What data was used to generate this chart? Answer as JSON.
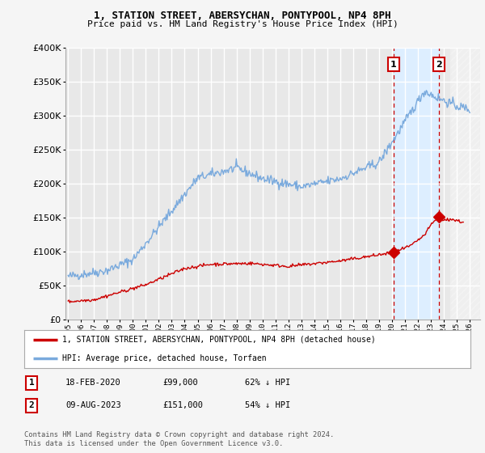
{
  "title": "1, STATION STREET, ABERSYCHAN, PONTYPOOL, NP4 8PH",
  "subtitle": "Price paid vs. HM Land Registry's House Price Index (HPI)",
  "ylim": [
    0,
    400000
  ],
  "xlim_start": 1994.8,
  "xlim_end": 2026.8,
  "xticks": [
    1995,
    1996,
    1997,
    1998,
    1999,
    2000,
    2001,
    2002,
    2003,
    2004,
    2005,
    2006,
    2007,
    2008,
    2009,
    2010,
    2011,
    2012,
    2013,
    2014,
    2015,
    2016,
    2017,
    2018,
    2019,
    2020,
    2021,
    2022,
    2023,
    2024,
    2025,
    2026
  ],
  "hpi_color": "#7aaadd",
  "price_color": "#cc0000",
  "marker1_date": 2020.12,
  "marker1_value": 99000,
  "marker1_label": "1",
  "marker2_date": 2023.62,
  "marker2_value": 151000,
  "marker2_label": "2",
  "shaded_start": 2020.12,
  "shaded_end": 2023.62,
  "shaded_color": "#ddeeff",
  "hatch_start": 2024.5,
  "hatch_end": 2026.8,
  "legend_entry1": "1, STATION STREET, ABERSYCHAN, PONTYPOOL, NP4 8PH (detached house)",
  "legend_entry2": "HPI: Average price, detached house, Torfaen",
  "table_row1": [
    "1",
    "18-FEB-2020",
    "£99,000",
    "62% ↓ HPI"
  ],
  "table_row2": [
    "2",
    "09-AUG-2023",
    "£151,000",
    "54% ↓ HPI"
  ],
  "footer": "Contains HM Land Registry data © Crown copyright and database right 2024.\nThis data is licensed under the Open Government Licence v3.0.",
  "background_color": "#f5f5f5",
  "plot_bg_color": "#e8e8e8"
}
